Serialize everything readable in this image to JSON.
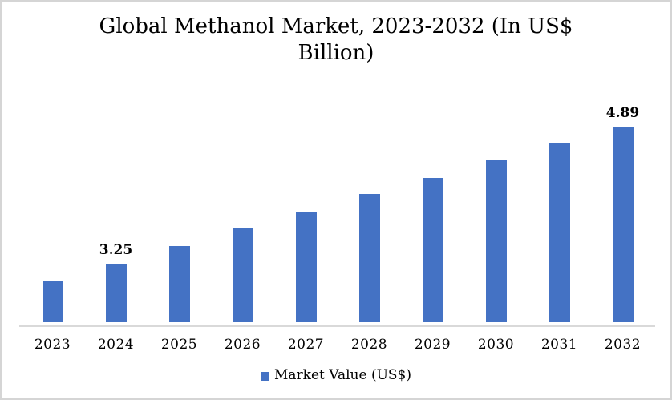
{
  "page": {
    "background": "#ffffff",
    "border_color": "#d5d5d5"
  },
  "header": {
    "title_line1": "Global Methanol Market, 2023-2032 (In US$",
    "title_line2": "Billion)"
  },
  "legend": {
    "series_label": "Market Value (US$)",
    "swatch_color": "#4472c4"
  },
  "chart_data": {
    "type": "bar",
    "title": "Global Methanol Market, 2023-2032 (In US$ Billion)",
    "categories": [
      "2023",
      "2024",
      "2025",
      "2026",
      "2027",
      "2028",
      "2029",
      "2030",
      "2031",
      "2032"
    ],
    "values": [
      3.05,
      3.25,
      3.46,
      3.67,
      3.87,
      4.08,
      4.28,
      4.49,
      4.69,
      4.89
    ],
    "data_labels": {
      "2024": "3.25",
      "2032": "4.89"
    },
    "series_name": "Market Value (US$)",
    "bar_color": "#4472c4",
    "axis_line_color": "#d9d9d9",
    "xlabel": "",
    "ylabel": "",
    "ylim": [
      2.55,
      5.0
    ],
    "grid": false,
    "y_axis_visible": false,
    "legend_position": "bottom"
  }
}
